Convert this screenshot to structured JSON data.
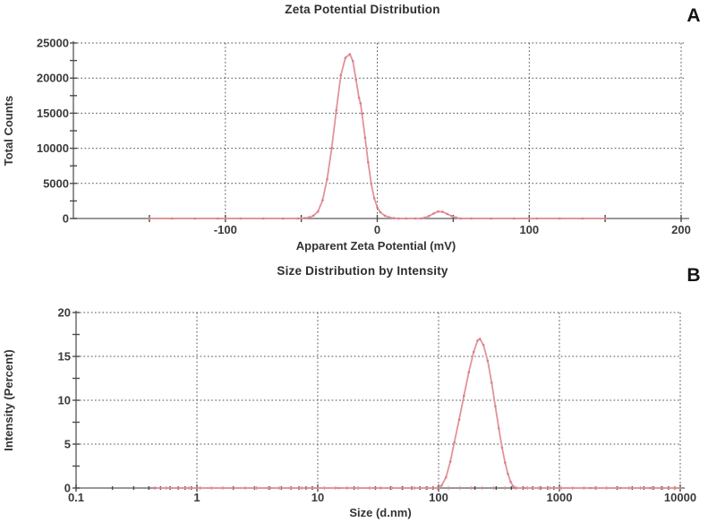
{
  "figure": {
    "background": "#ffffff",
    "line_color": "#e29398",
    "marker_color": "#d5808b",
    "grid_color": "#4d4d4d",
    "axis_color": "#767676",
    "text_color": "#333333"
  },
  "chart_data": [
    {
      "type": "line",
      "panel_label": "A",
      "title": "Zeta Potential Distribution",
      "xlabel": "Apparent Zeta Potential (mV)",
      "ylabel": "Total Counts",
      "xscale": "linear",
      "xlim": [
        -200,
        200
      ],
      "ylim": [
        0,
        25000
      ],
      "grid": "dotted",
      "legend": "none",
      "xticks": [
        {
          "v": -100,
          "l": "-100"
        },
        {
          "v": 0,
          "l": "0"
        },
        {
          "v": 100,
          "l": "100"
        },
        {
          "v": 200,
          "l": "200"
        }
      ],
      "xticks_minor": [
        -150,
        -100,
        -50,
        0,
        50,
        100,
        150,
        200
      ],
      "xgrid": [
        -100,
        0,
        100,
        200
      ],
      "yticks": [
        {
          "v": 0,
          "l": "0"
        },
        {
          "v": 5000,
          "l": "5000"
        },
        {
          "v": 10000,
          "l": "10000"
        },
        {
          "v": 15000,
          "l": "15000"
        },
        {
          "v": 20000,
          "l": "20000"
        },
        {
          "v": 25000,
          "l": "25000"
        }
      ],
      "yticks_minor_step": 2500,
      "series": [
        {
          "name": "zeta-potential-trace",
          "peak_summary": {
            "peak_mV": -18,
            "peak_counts": 23400,
            "secondary_peak_mV": 40,
            "secondary_peak_counts": 1000
          },
          "points": [
            [
              -150,
              0
            ],
            [
              -135,
              0
            ],
            [
              -120,
              0
            ],
            [
              -105,
              0
            ],
            [
              -90,
              0
            ],
            [
              -75,
              0
            ],
            [
              -62,
              0
            ],
            [
              -52,
              0
            ],
            [
              -48,
              50
            ],
            [
              -45,
              150
            ],
            [
              -42,
              400
            ],
            [
              -39,
              1000
            ],
            [
              -36,
              2600
            ],
            [
              -33,
              5600
            ],
            [
              -30,
              10000
            ],
            [
              -27,
              15400
            ],
            [
              -24,
              20400
            ],
            [
              -21,
              22900
            ],
            [
              -18,
              23400
            ],
            [
              -16,
              22400
            ],
            [
              -14,
              19800
            ],
            [
              -12,
              17200
            ],
            [
              -11,
              16400
            ],
            [
              -10,
              14900
            ],
            [
              -8,
              11500
            ],
            [
              -6,
              8000
            ],
            [
              -4,
              5000
            ],
            [
              -2,
              2900
            ],
            [
              0,
              1600
            ],
            [
              2,
              900
            ],
            [
              5,
              400
            ],
            [
              8,
              150
            ],
            [
              11,
              50
            ],
            [
              14,
              0
            ],
            [
              19,
              0
            ],
            [
              25,
              0
            ],
            [
              29,
              0
            ],
            [
              31,
              100
            ],
            [
              34,
              350
            ],
            [
              37,
              700
            ],
            [
              40,
              1000
            ],
            [
              43,
              950
            ],
            [
              46,
              650
            ],
            [
              49,
              350
            ],
            [
              52,
              120
            ],
            [
              55,
              0
            ],
            [
              62,
              0
            ],
            [
              75,
              0
            ],
            [
              90,
              0
            ],
            [
              105,
              0
            ],
            [
              120,
              0
            ],
            [
              135,
              0
            ],
            [
              150,
              0
            ]
          ]
        }
      ]
    },
    {
      "type": "line",
      "panel_label": "B",
      "title": "Size Distribution by Intensity",
      "xlabel": "Size (d.nm)",
      "ylabel": "Intensity (Percent)",
      "xscale": "log",
      "xlim": [
        0.1,
        10000
      ],
      "ylim": [
        0,
        20
      ],
      "grid": "dotted",
      "legend": "none",
      "xticks": [
        {
          "v": 0.1,
          "l": "0.1"
        },
        {
          "v": 1,
          "l": "1"
        },
        {
          "v": 10,
          "l": "10"
        },
        {
          "v": 100,
          "l": "100"
        },
        {
          "v": 1000,
          "l": "1000"
        },
        {
          "v": 10000,
          "l": "10000"
        }
      ],
      "xgrid": [
        1,
        10,
        100,
        1000,
        10000
      ],
      "yticks": [
        {
          "v": 0,
          "l": "0"
        },
        {
          "v": 5,
          "l": "5"
        },
        {
          "v": 10,
          "l": "10"
        },
        {
          "v": 15,
          "l": "15"
        },
        {
          "v": 20,
          "l": "20"
        }
      ],
      "yticks_minor_step": 2.5,
      "baseline_markers": {
        "start": 0.45,
        "end": 9000,
        "factor": 1.24
      },
      "series": [
        {
          "name": "size-intensity-trace",
          "peak_summary": {
            "peak_dnm": 220,
            "peak_percent": 17
          },
          "points": [
            [
              0.45,
              0
            ],
            [
              0.7,
              0
            ],
            [
              1,
              0
            ],
            [
              2,
              0
            ],
            [
              4,
              0
            ],
            [
              8,
              0
            ],
            [
              15,
              0
            ],
            [
              30,
              0
            ],
            [
              60,
              0
            ],
            [
              90,
              0
            ],
            [
              100,
              0
            ],
            [
              106,
              0.3
            ],
            [
              115,
              1.2
            ],
            [
              125,
              3
            ],
            [
              135,
              5.2
            ],
            [
              148,
              7.8
            ],
            [
              162,
              10.5
            ],
            [
              178,
              13.2
            ],
            [
              195,
              15.5
            ],
            [
              210,
              16.8
            ],
            [
              220,
              17
            ],
            [
              235,
              16.3
            ],
            [
              255,
              14.5
            ],
            [
              275,
              12
            ],
            [
              295,
              9.3
            ],
            [
              315,
              6.8
            ],
            [
              335,
              4.6
            ],
            [
              355,
              2.9
            ],
            [
              375,
              1.6
            ],
            [
              395,
              0.7
            ],
            [
              415,
              0.2
            ],
            [
              435,
              0
            ],
            [
              520,
              0
            ],
            [
              700,
              0
            ],
            [
              1000,
              0
            ],
            [
              1800,
              0
            ],
            [
              3200,
              0
            ],
            [
              5600,
              0
            ],
            [
              10000,
              0
            ]
          ]
        }
      ]
    }
  ]
}
